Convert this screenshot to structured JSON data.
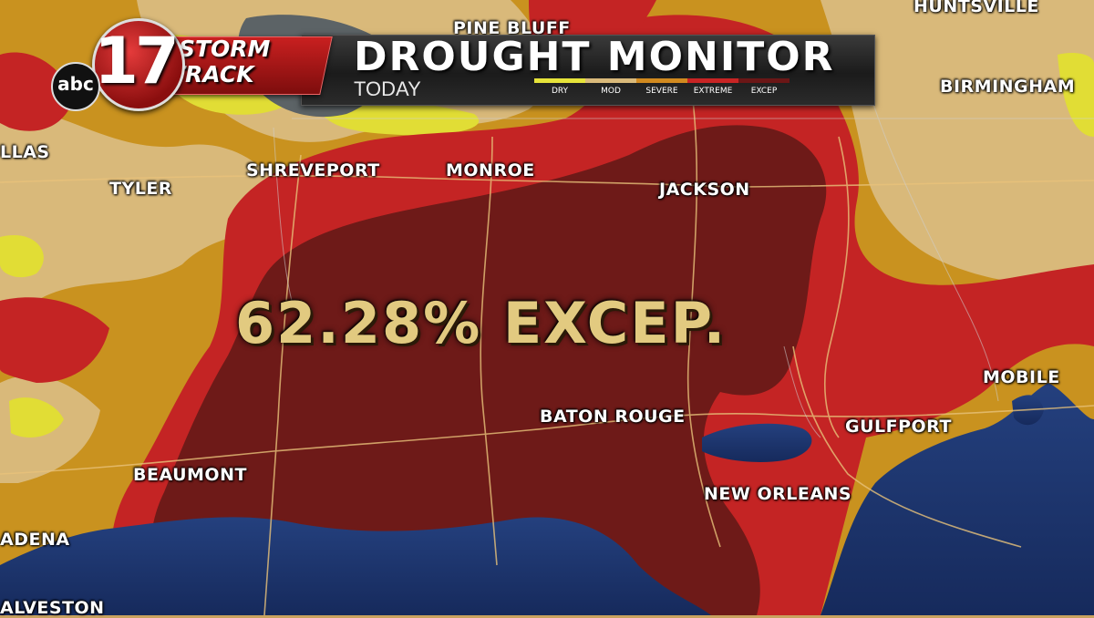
{
  "header": {
    "station_logo_number": "17",
    "network_logo": "abc",
    "brand_line1": "STORM",
    "brand_line2": "TRACK",
    "title": "DROUGHT MONITOR",
    "subtitle": "TODAY"
  },
  "legend": [
    {
      "label": "DRY",
      "color": "#e6e33a"
    },
    {
      "label": "MOD",
      "color": "#d9b97a"
    },
    {
      "label": "SEVERE",
      "color": "#d18a1f"
    },
    {
      "label": "EXTREME",
      "color": "#c82424"
    },
    {
      "label": "EXCEP",
      "color": "#6b1616"
    }
  ],
  "stat": {
    "text": "62.28% EXCEP."
  },
  "cities": [
    {
      "id": "pine-bluff",
      "label": "PINE BLUFF"
    },
    {
      "id": "huntsville",
      "label": "HUNTSVILLE"
    },
    {
      "id": "birmingham",
      "label": "BIRMINGHAM"
    },
    {
      "id": "dallas",
      "label": "LLAS"
    },
    {
      "id": "tyler",
      "label": "TYLER"
    },
    {
      "id": "shreveport",
      "label": "SHREVEPORT"
    },
    {
      "id": "monroe",
      "label": "MONROE"
    },
    {
      "id": "jackson",
      "label": "JACKSON"
    },
    {
      "id": "mobile",
      "label": "MOBILE"
    },
    {
      "id": "baton-rouge",
      "label": "BATON ROUGE"
    },
    {
      "id": "gulfport",
      "label": "GULFPORT"
    },
    {
      "id": "beaumont",
      "label": "BEAUMONT"
    },
    {
      "id": "new-orleans",
      "label": "NEW ORLEANS"
    },
    {
      "id": "pasadena",
      "label": "ADENA"
    },
    {
      "id": "galveston",
      "label": "ALVESTON"
    }
  ],
  "colors": {
    "water": "#1a2f66",
    "moderate": "#d9b97a",
    "severe": "#c9921f",
    "extreme": "#c42424",
    "exceptional": "#6e1a18",
    "dry": "#e1dd35"
  }
}
